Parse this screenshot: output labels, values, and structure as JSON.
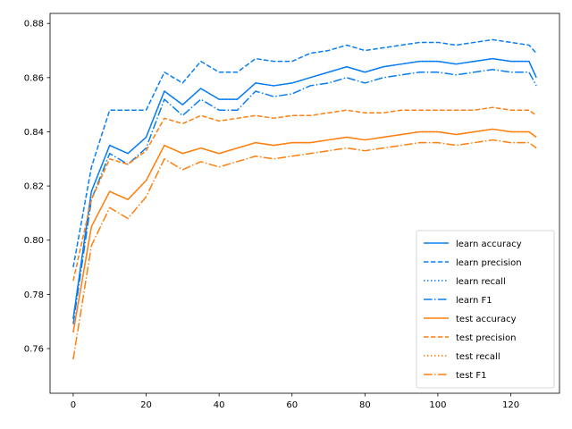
{
  "chart_data": {
    "type": "line",
    "title": "",
    "xlabel": "",
    "ylabel": "",
    "xlim": [
      -6.35,
      133.35
    ],
    "ylim": [
      0.7435,
      0.8837
    ],
    "x_ticks": [
      0,
      20,
      40,
      60,
      80,
      100,
      120
    ],
    "y_ticks": [
      0.76,
      0.78,
      0.8,
      0.82,
      0.84,
      0.86,
      0.88
    ],
    "grid": false,
    "legend_position": "lower-right",
    "colors": {
      "learn": "#0a7ef0",
      "test": "#ff7f0e"
    },
    "x": [
      0,
      5,
      10,
      15,
      20,
      25,
      30,
      35,
      40,
      45,
      50,
      55,
      60,
      65,
      70,
      75,
      80,
      85,
      90,
      95,
      100,
      105,
      110,
      115,
      120,
      125,
      127
    ],
    "series": [
      {
        "name": "learn accuracy",
        "color": "#0a7ef0",
        "dash": "solid",
        "values": [
          0.771,
          0.818,
          0.835,
          0.832,
          0.838,
          0.855,
          0.85,
          0.856,
          0.852,
          0.852,
          0.858,
          0.857,
          0.858,
          0.86,
          0.862,
          0.864,
          0.862,
          0.864,
          0.865,
          0.866,
          0.866,
          0.865,
          0.866,
          0.867,
          0.866,
          0.866,
          0.86
        ]
      },
      {
        "name": "learn precision",
        "color": "#0a7ef0",
        "dash": "dashed",
        "values": [
          0.79,
          0.827,
          0.848,
          0.848,
          0.848,
          0.862,
          0.858,
          0.866,
          0.862,
          0.862,
          0.867,
          0.866,
          0.866,
          0.869,
          0.87,
          0.872,
          0.87,
          0.871,
          0.872,
          0.873,
          0.873,
          0.872,
          0.873,
          0.874,
          0.873,
          0.872,
          0.869
        ]
      },
      {
        "name": "learn recall",
        "color": "#0a7ef0",
        "dash": "dotted",
        "values": [
          0.771,
          0.818,
          0.835,
          0.832,
          0.838,
          0.855,
          0.85,
          0.856,
          0.852,
          0.852,
          0.858,
          0.857,
          0.858,
          0.86,
          0.862,
          0.864,
          0.862,
          0.864,
          0.865,
          0.866,
          0.866,
          0.865,
          0.866,
          0.867,
          0.866,
          0.866,
          0.86
        ]
      },
      {
        "name": "learn F1",
        "color": "#0a7ef0",
        "dash": "dashdot",
        "values": [
          0.769,
          0.815,
          0.832,
          0.828,
          0.834,
          0.852,
          0.846,
          0.852,
          0.848,
          0.848,
          0.855,
          0.853,
          0.854,
          0.857,
          0.858,
          0.86,
          0.858,
          0.86,
          0.861,
          0.862,
          0.862,
          0.861,
          0.862,
          0.863,
          0.862,
          0.862,
          0.857
        ]
      },
      {
        "name": "test accuracy",
        "color": "#ff7f0e",
        "dash": "solid",
        "values": [
          0.766,
          0.805,
          0.818,
          0.815,
          0.822,
          0.835,
          0.832,
          0.834,
          0.832,
          0.834,
          0.836,
          0.835,
          0.836,
          0.836,
          0.837,
          0.838,
          0.837,
          0.838,
          0.839,
          0.84,
          0.84,
          0.839,
          0.84,
          0.841,
          0.84,
          0.84,
          0.838
        ]
      },
      {
        "name": "test precision",
        "color": "#ff7f0e",
        "dash": "dashed",
        "values": [
          0.785,
          0.815,
          0.83,
          0.828,
          0.833,
          0.845,
          0.843,
          0.846,
          0.844,
          0.845,
          0.846,
          0.845,
          0.846,
          0.846,
          0.847,
          0.848,
          0.847,
          0.847,
          0.848,
          0.848,
          0.848,
          0.848,
          0.848,
          0.849,
          0.848,
          0.848,
          0.846
        ]
      },
      {
        "name": "test recall",
        "color": "#ff7f0e",
        "dash": "dotted",
        "values": [
          0.766,
          0.805,
          0.818,
          0.815,
          0.822,
          0.835,
          0.832,
          0.834,
          0.832,
          0.834,
          0.836,
          0.835,
          0.836,
          0.836,
          0.837,
          0.838,
          0.837,
          0.838,
          0.839,
          0.84,
          0.84,
          0.839,
          0.84,
          0.841,
          0.84,
          0.84,
          0.838
        ]
      },
      {
        "name": "test F1",
        "color": "#ff7f0e",
        "dash": "dashdot",
        "values": [
          0.756,
          0.798,
          0.812,
          0.808,
          0.816,
          0.83,
          0.826,
          0.829,
          0.827,
          0.829,
          0.831,
          0.83,
          0.831,
          0.832,
          0.833,
          0.834,
          0.833,
          0.834,
          0.835,
          0.836,
          0.836,
          0.835,
          0.836,
          0.837,
          0.836,
          0.836,
          0.834
        ]
      }
    ]
  }
}
